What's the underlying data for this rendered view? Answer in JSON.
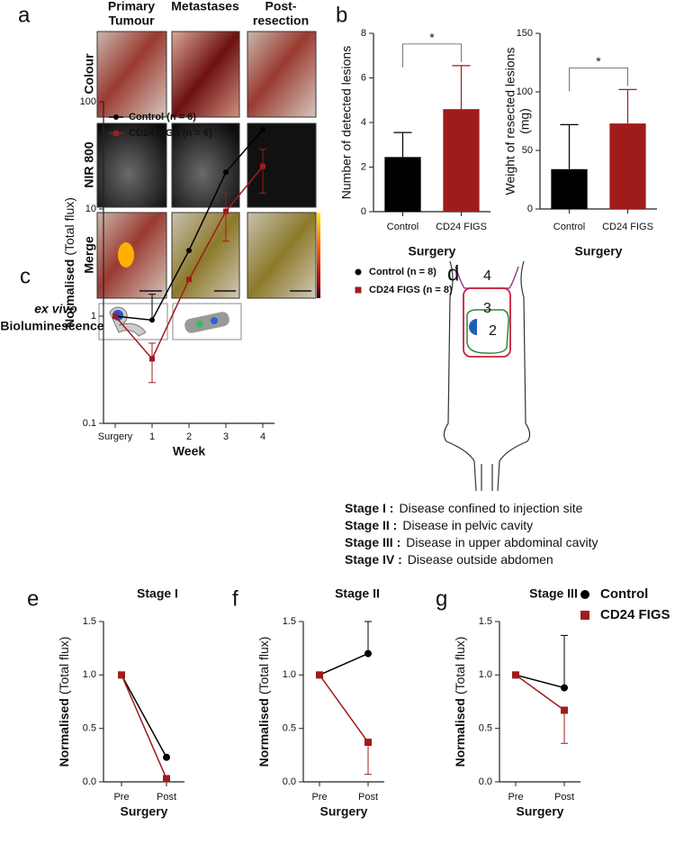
{
  "panel_labels": [
    "a",
    "b",
    "c",
    "d",
    "e",
    "f",
    "g"
  ],
  "panel_a": {
    "columns": [
      [
        "Primary",
        "Tumour"
      ],
      [
        "Metastases"
      ],
      [
        "Post-",
        "resection"
      ]
    ],
    "rows": [
      "Colour",
      "NIR 800",
      "Merge"
    ],
    "ex_vivo": "ex vivo",
    "bioluminescence": "Bioluminescence"
  },
  "panel_d": {
    "regions": [
      "4",
      "3",
      "2"
    ],
    "stages": [
      {
        "label": "Stage I :",
        "text": "Disease confined to injection site"
      },
      {
        "label": "Stage II :",
        "text": "Disease in pelvic cavity"
      },
      {
        "label": "Stage III :",
        "text": "Disease in upper abdominal cavity"
      },
      {
        "label": "Stage IV :",
        "text": "Disease outside abdomen"
      }
    ]
  },
  "chart_data": [
    {
      "type": "bar",
      "ylabel": "Number of detected lesions",
      "xlabel": "Surgery",
      "categories": [
        "Control",
        "CD24 FIGS"
      ],
      "values": [
        2.45,
        4.6
      ],
      "errors": [
        1.1,
        1.95
      ],
      "colors": [
        "#000000",
        "#a01c1c"
      ],
      "ylim": [
        0,
        8
      ],
      "yticks": [
        0,
        2,
        4,
        6,
        8
      ],
      "annotation": "*",
      "legend": [
        {
          "label": "Control (n = 8)",
          "color": "#000000",
          "marker": "circle"
        },
        {
          "label": "CD24 FIGS (n = 8)",
          "color": "#a01c1c",
          "marker": "square"
        }
      ]
    },
    {
      "type": "bar",
      "ylabel": "Weight of resected lesions",
      "ylabel_unit": "(mg)",
      "xlabel": "Surgery",
      "categories": [
        "Control",
        "CD24 FIGS"
      ],
      "values": [
        34,
        73
      ],
      "errors": [
        38,
        29
      ],
      "colors": [
        "#000000",
        "#a01c1c"
      ],
      "ylim": [
        0,
        150
      ],
      "yticks": [
        0,
        50,
        100,
        150
      ],
      "annotation": "*"
    },
    {
      "type": "line",
      "log": true,
      "ylabel": "Normalised",
      "ylabel_unit": "(Total flux)",
      "xlabel": "Week",
      "categories": [
        "Surgery",
        "1",
        "2",
        "3",
        "4"
      ],
      "ylim": [
        0.1,
        100
      ],
      "yticks": [
        0.1,
        1,
        10,
        100
      ],
      "legend_position": "upper left",
      "series": [
        {
          "name": "Control (n = 6)",
          "color": "#000000",
          "marker": "circle",
          "values": [
            1,
            0.92,
            4.1,
            22,
            55
          ],
          "errors": [
            null,
            0.68,
            null,
            null,
            null
          ],
          "error_side": "up"
        },
        {
          "name": "CD24 FIGS (n = 6)",
          "color": "#a01c1c",
          "marker": "square",
          "values": [
            1,
            0.4,
            2.2,
            9.5,
            25
          ],
          "errors": [
            null,
            0.16,
            null,
            4.5,
            11
          ],
          "error_side": "both"
        }
      ]
    },
    {
      "type": "line",
      "title": "Stage I",
      "ylabel": "Normalised",
      "ylabel_unit": "(Total flux)",
      "xlabel": "Surgery",
      "categories": [
        "Pre",
        "Post"
      ],
      "ylim": [
        0,
        1.5
      ],
      "yticks": [
        {
          "value": 0,
          "label": "0.0"
        },
        0.5,
        {
          "value": 1,
          "label": "1.0"
        },
        1.5
      ],
      "series": [
        {
          "color": "#000000",
          "marker": "circle",
          "values": [
            1,
            0.23
          ],
          "errors": [
            null,
            null
          ],
          "error_side": "up"
        },
        {
          "color": "#a01c1c",
          "marker": "square",
          "values": [
            1,
            0.03
          ],
          "errors": [
            null,
            null
          ],
          "error_side": "down"
        }
      ]
    },
    {
      "type": "line",
      "title": "Stage II",
      "ylabel": "Normalised",
      "ylabel_unit": "(Total flux)",
      "xlabel": "Surgery",
      "categories": [
        "Pre",
        "Post"
      ],
      "ylim": [
        0,
        1.5
      ],
      "yticks": [
        {
          "value": 0,
          "label": "0.0"
        },
        0.5,
        {
          "value": 1,
          "label": "1.0"
        },
        1.5
      ],
      "series": [
        {
          "color": "#000000",
          "marker": "circle",
          "values": [
            1,
            1.2
          ],
          "errors": [
            null,
            0.3
          ],
          "error_side": "up"
        },
        {
          "color": "#a01c1c",
          "marker": "square",
          "values": [
            1,
            0.37
          ],
          "errors": [
            null,
            0.3
          ],
          "error_side": "down"
        }
      ]
    },
    {
      "type": "line",
      "title": "Stage III",
      "ylabel": "Normalised",
      "ylabel_unit": "(Total flux)",
      "xlabel": "Surgery",
      "categories": [
        "Pre",
        "Post"
      ],
      "ylim": [
        0,
        1.5
      ],
      "yticks": [
        {
          "value": 0,
          "label": "0.0"
        },
        0.5,
        {
          "value": 1,
          "label": "1.0"
        },
        1.5
      ],
      "legend_position": "outside right",
      "series": [
        {
          "name": "Control",
          "color": "#000000",
          "marker": "circle",
          "values": [
            1,
            0.88
          ],
          "errors": [
            null,
            0.49
          ],
          "error_side": "up"
        },
        {
          "name": "CD24 FIGS",
          "color": "#a01c1c",
          "marker": "square",
          "values": [
            1,
            0.67
          ],
          "errors": [
            null,
            0.31
          ],
          "error_side": "down"
        }
      ]
    }
  ]
}
